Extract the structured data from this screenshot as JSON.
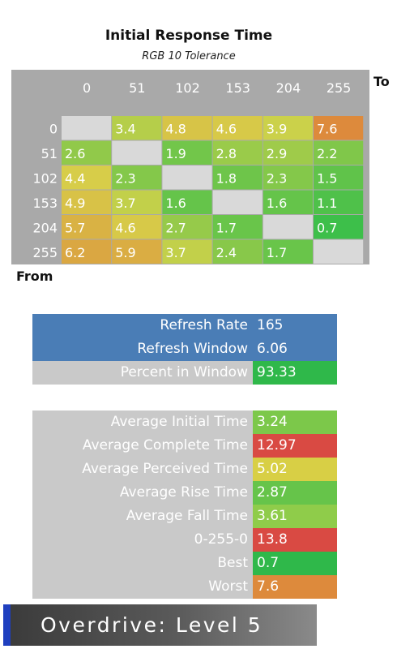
{
  "chart_data": {
    "type": "heatmap",
    "title": "Initial Response Time",
    "subtitle": "RGB 10 Tolerance",
    "xlabel": "To",
    "ylabel": "From",
    "x_categories": [
      "0",
      "51",
      "102",
      "153",
      "204",
      "255"
    ],
    "y_categories": [
      "0",
      "51",
      "102",
      "153",
      "204",
      "255"
    ],
    "values": [
      [
        null,
        3.4,
        4.8,
        4.6,
        3.9,
        7.6
      ],
      [
        2.6,
        null,
        1.9,
        2.8,
        2.9,
        2.2
      ],
      [
        4.4,
        2.3,
        null,
        1.8,
        2.3,
        1.5
      ],
      [
        4.9,
        3.7,
        1.6,
        null,
        1.6,
        1.1
      ],
      [
        5.7,
        4.6,
        2.7,
        1.7,
        null,
        0.7
      ],
      [
        6.2,
        5.9,
        3.7,
        2.4,
        1.7,
        null
      ]
    ],
    "colors": {
      "diagonal": "#d9d9d9",
      "low": "#3dbf4a",
      "mid": "#d6d24a",
      "high": "#dd8a3c"
    }
  },
  "refresh_panel": [
    {
      "label": "Refresh Rate",
      "value": "165",
      "style": "blue"
    },
    {
      "label": "Refresh Window",
      "value": "6.06",
      "style": "blue"
    },
    {
      "label": "Percent in Window",
      "value": "93.33",
      "style": "grey",
      "value_color": "#2fb84a"
    }
  ],
  "stats_panel": [
    {
      "label": "Average Initial Time",
      "value": "3.24",
      "value_color": "#7cc84a"
    },
    {
      "label": "Average Complete Time",
      "value": "12.97",
      "value_color": "#d94a43"
    },
    {
      "label": "Average Perceived Time",
      "value": "5.02",
      "value_color": "#d8cf45"
    },
    {
      "label": "Average Rise Time",
      "value": "2.87",
      "value_color": "#66c44a"
    },
    {
      "label": "Average Fall Time",
      "value": "3.61",
      "value_color": "#8fcc4a"
    },
    {
      "label": "0-255-0",
      "value": "13.8",
      "value_color": "#d94a43"
    },
    {
      "label": "Best",
      "value": "0.7",
      "value_color": "#2fb84a"
    },
    {
      "label": "Worst",
      "value": "7.6",
      "value_color": "#dd8a3c"
    }
  ],
  "footer": {
    "text": "Overdrive: Level 5",
    "accent_color": "#1f3fbf"
  }
}
